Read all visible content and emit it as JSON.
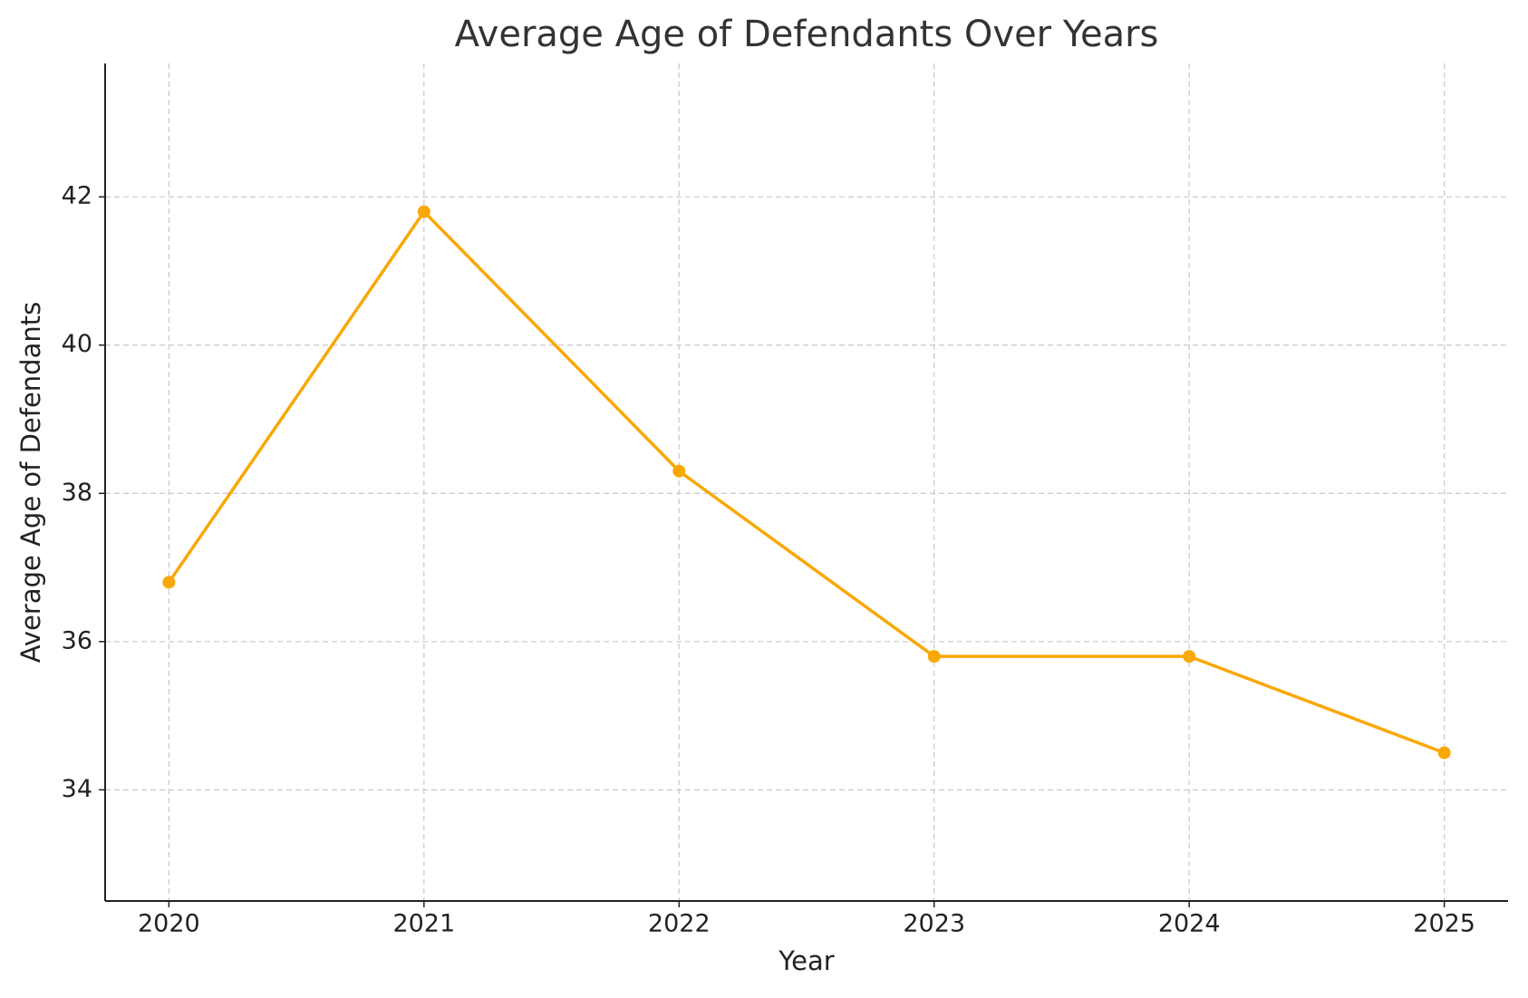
{
  "chart_data": {
    "type": "line",
    "title": "Average Age of Defendants Over Years",
    "x_label": "Year",
    "y_label": "Average Age of Defendants",
    "x": [
      2020,
      2021,
      2022,
      2023,
      2024,
      2025
    ],
    "series": [
      {
        "color": "#f9a806",
        "values": [
          36.8,
          41.8,
          38.3,
          35.8,
          35.8,
          34.5
        ]
      }
    ],
    "xlim": [
      2019.75,
      2025.25
    ],
    "xticks": [
      2020,
      2021,
      2022,
      2023,
      2024,
      2025
    ],
    "ylim": [
      32.5,
      43.8
    ],
    "yticks": [
      34,
      36,
      38,
      40,
      42
    ],
    "grid": true
  }
}
